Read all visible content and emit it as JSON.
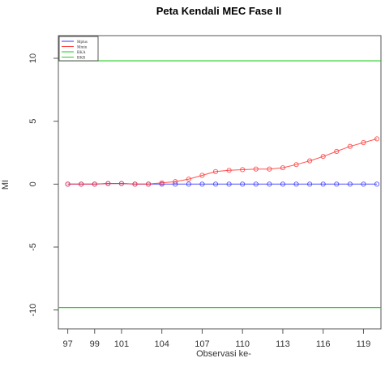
{
  "chart_data": {
    "type": "line",
    "title": "Peta Kendali MEC Fase II",
    "xlabel": "Observasi ke-",
    "ylabel": "MI",
    "x": [
      97,
      98,
      99,
      100,
      101,
      102,
      103,
      104,
      105,
      106,
      107,
      108,
      109,
      110,
      111,
      112,
      113,
      114,
      115,
      116,
      117,
      118,
      119,
      120
    ],
    "xlim": [
      96.3,
      120.3
    ],
    "ylim": [
      -11.5,
      11.8
    ],
    "x_ticks": [
      "97",
      "99",
      "101",
      "104",
      "107",
      "110",
      "113",
      "116",
      "119"
    ],
    "y_ticks": [
      "10",
      "5",
      "0",
      "-5",
      "-10"
    ],
    "grid": false,
    "legend_position": "top-left",
    "series": [
      {
        "name": "Mplus",
        "color": "#3333ff",
        "style": "line-markers",
        "values": [
          0,
          0,
          0,
          0.05,
          0.05,
          0,
          0,
          0,
          0,
          0,
          0,
          0,
          0,
          0,
          0,
          0,
          0,
          0,
          0,
          0,
          0,
          0,
          0,
          0
        ]
      },
      {
        "name": "Mmin",
        "color": "#ff3333",
        "style": "line-markers",
        "values": [
          0,
          0,
          0,
          0.05,
          0.05,
          0,
          0,
          0.1,
          0.2,
          0.4,
          0.7,
          1.0,
          1.1,
          1.15,
          1.2,
          1.2,
          1.3,
          1.55,
          1.85,
          2.2,
          2.6,
          3.0,
          3.3,
          3.6
        ]
      },
      {
        "name": "BKA",
        "color": "#22cc22",
        "style": "hline",
        "value": 9.8
      },
      {
        "name": "BKB",
        "color": "#22cc22",
        "style": "hline",
        "value": -9.8
      }
    ]
  }
}
